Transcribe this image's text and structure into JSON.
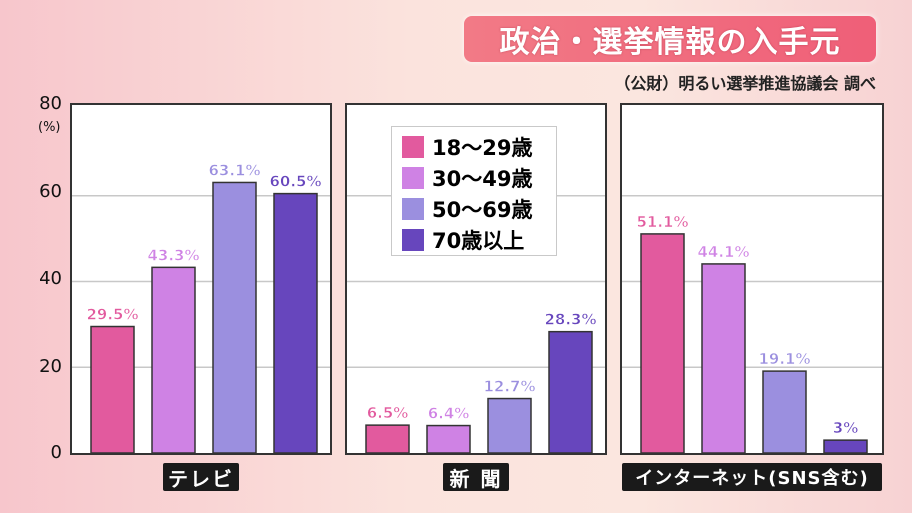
{
  "title": "政治・選挙情報の入手元",
  "source": "（公財）明るい選挙推進協議会 調べ",
  "chart_data": {
    "type": "bar",
    "ylim": [
      0,
      80
    ],
    "y_ticks": [
      "0",
      "20",
      "40",
      "60",
      "80"
    ],
    "y_unit": "(%)",
    "grid": true,
    "legend_position": "inside-center-panel",
    "categories": [
      "テレビ",
      "新 聞",
      "インターネット(SNS含む)"
    ],
    "series": [
      {
        "name": "18〜29歳",
        "color": "#e25a9e",
        "values": [
          29.5,
          6.5,
          51.1
        ],
        "labels": [
          "29.5%",
          "6.5%",
          "51.1%"
        ]
      },
      {
        "name": "30〜49歳",
        "color": "#cf82e4",
        "values": [
          43.3,
          6.4,
          44.1
        ],
        "labels": [
          "43.3%",
          "6.4%",
          "44.1%"
        ]
      },
      {
        "name": "50〜69歳",
        "color": "#9b8fdf",
        "values": [
          63.1,
          12.7,
          19.1
        ],
        "labels": [
          "63.1%",
          "12.7%",
          "19.1%"
        ]
      },
      {
        "name": "70歳以上",
        "color": "#6746bd",
        "values": [
          60.5,
          28.3,
          3
        ],
        "labels": [
          "60.5%",
          "28.3%",
          "3%"
        ]
      }
    ]
  }
}
